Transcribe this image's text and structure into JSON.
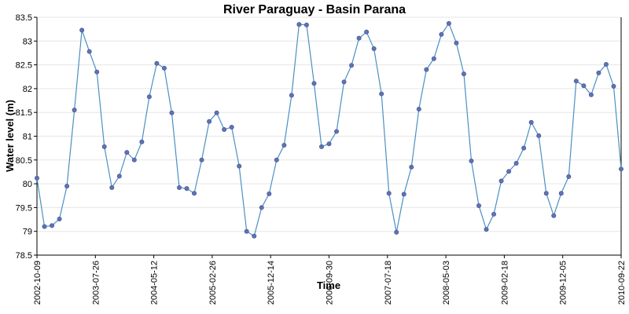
{
  "chart_data": {
    "type": "line",
    "title": "River Paraguay - Basin Parana",
    "xlabel": "Time",
    "ylabel": "Water level (m)",
    "ylim": [
      78.5,
      83.5
    ],
    "y_ticks": [
      78.5,
      79,
      79.5,
      80,
      80.5,
      81,
      81.5,
      82,
      82.5,
      83,
      83.5
    ],
    "x_tick_labels": [
      "2002-10-09",
      "2003-07-26",
      "2004-05-12",
      "2005-02-26",
      "2005-12-14",
      "2006-09-30",
      "2007-07-18",
      "2008-05-03",
      "2009-02-18",
      "2009-12-05",
      "2010-09-22"
    ],
    "grid": true,
    "colors": {
      "line": "#4a90c4",
      "point_fill": "#6a6fb0",
      "point_stroke": "#3f5f9f",
      "grid": "#e6e6e6"
    },
    "series": [
      {
        "values": [
          80.12,
          79.1,
          79.12,
          79.26,
          79.95,
          81.55,
          83.23,
          82.78,
          82.35,
          80.78,
          79.92,
          80.16,
          80.66,
          80.5,
          80.88,
          81.83,
          82.53,
          82.43,
          81.49,
          79.92,
          79.9,
          79.8,
          80.5,
          81.31,
          81.49,
          81.14,
          81.19,
          80.37,
          79.0,
          78.9,
          79.5,
          79.79,
          80.5,
          80.81,
          81.86,
          83.35,
          83.34,
          82.11,
          80.78,
          80.84,
          81.1,
          82.14,
          82.49,
          83.06,
          83.19,
          82.84,
          81.89,
          79.8,
          78.98,
          79.78,
          80.35,
          81.57,
          82.4,
          82.63,
          83.14,
          83.37,
          82.96,
          82.31,
          80.48,
          79.54,
          79.04,
          79.36,
          80.06,
          80.26,
          80.43,
          80.75,
          81.29,
          81.01,
          79.8,
          79.33,
          79.8,
          80.15,
          82.16,
          82.06,
          81.87,
          82.33,
          82.51,
          82.05,
          80.31
        ]
      }
    ]
  }
}
